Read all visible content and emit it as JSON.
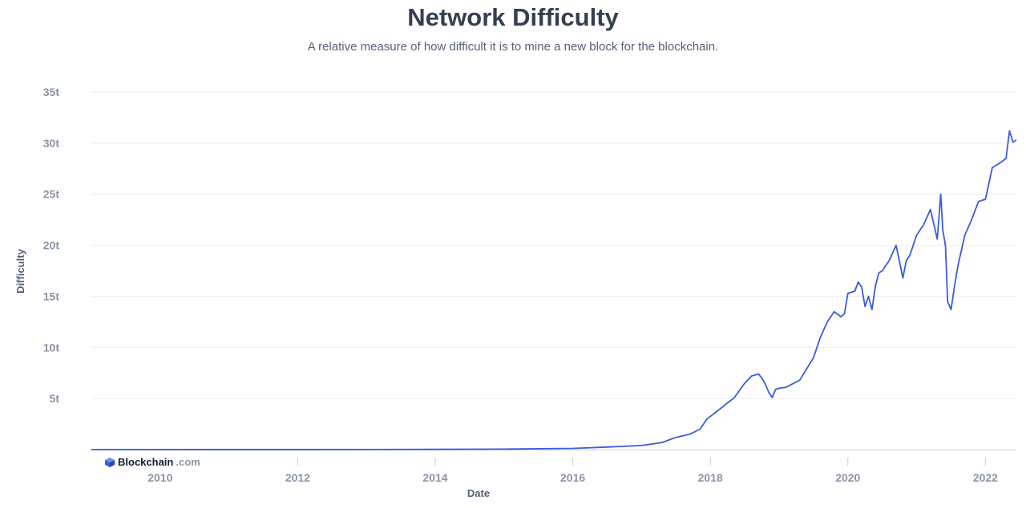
{
  "header": {
    "title": "Network Difficulty",
    "subtitle": "A relative measure of how difficult it is to mine a new block for the blockchain."
  },
  "logo": {
    "brand": "Blockchain",
    "tld": ".com",
    "icon": "blockchain-cube-icon"
  },
  "colors": {
    "line": "#3b5bdb",
    "grid": "#eceef3",
    "text": "#353f52",
    "tick": "#8b93a8"
  },
  "chart_data": {
    "type": "line",
    "title": "Network Difficulty",
    "xlabel": "Date",
    "ylabel": "Difficulty",
    "xlim": [
      2009.0,
      2022.45
    ],
    "ylim": [
      0,
      35
    ],
    "x_ticks": [
      2010,
      2012,
      2014,
      2016,
      2018,
      2020,
      2022
    ],
    "x_tick_labels": [
      "2010",
      "2012",
      "2014",
      "2016",
      "2018",
      "2020",
      "2022"
    ],
    "y_ticks": [
      5,
      10,
      15,
      20,
      25,
      30,
      35
    ],
    "y_tick_labels": [
      "5t",
      "10t",
      "15t",
      "20t",
      "25t",
      "30t",
      "35t"
    ],
    "grid": true,
    "series": [
      {
        "name": "Difficulty",
        "x": [
          2009.0,
          2013.0,
          2014.0,
          2015.0,
          2016.0,
          2016.5,
          2017.0,
          2017.3,
          2017.5,
          2017.7,
          2017.85,
          2017.95,
          2018.05,
          2018.2,
          2018.35,
          2018.5,
          2018.6,
          2018.7,
          2018.75,
          2018.8,
          2018.85,
          2018.9,
          2018.95,
          2019.0,
          2019.1,
          2019.3,
          2019.5,
          2019.6,
          2019.7,
          2019.8,
          2019.9,
          2019.95,
          2020.0,
          2020.1,
          2020.15,
          2020.2,
          2020.25,
          2020.3,
          2020.35,
          2020.4,
          2020.45,
          2020.5,
          2020.6,
          2020.7,
          2020.8,
          2020.85,
          2020.9,
          2020.95,
          2021.0,
          2021.1,
          2021.2,
          2021.3,
          2021.35,
          2021.38,
          2021.42,
          2021.45,
          2021.5,
          2021.55,
          2021.6,
          2021.65,
          2021.7,
          2021.8,
          2021.9,
          2022.0,
          2022.1,
          2022.2,
          2022.3,
          2022.35,
          2022.4,
          2022.45
        ],
        "values": [
          0.0,
          0.01,
          0.02,
          0.05,
          0.12,
          0.25,
          0.4,
          0.7,
          1.2,
          1.5,
          2.0,
          3.0,
          3.5,
          4.3,
          5.1,
          6.5,
          7.2,
          7.4,
          7.0,
          6.4,
          5.6,
          5.1,
          5.9,
          6.0,
          6.1,
          6.8,
          9.0,
          11.0,
          12.5,
          13.5,
          13.0,
          13.3,
          15.3,
          15.5,
          16.4,
          15.9,
          14.0,
          15.0,
          13.7,
          16.0,
          17.3,
          17.5,
          18.5,
          20.0,
          16.8,
          18.5,
          19.0,
          20.0,
          21.0,
          22.0,
          23.5,
          20.6,
          25.0,
          21.5,
          19.9,
          14.5,
          13.7,
          16.0,
          18.0,
          19.5,
          21.0,
          22.5,
          24.3,
          24.5,
          27.6,
          28.0,
          28.5,
          31.2,
          30.1,
          30.3
        ]
      }
    ]
  }
}
